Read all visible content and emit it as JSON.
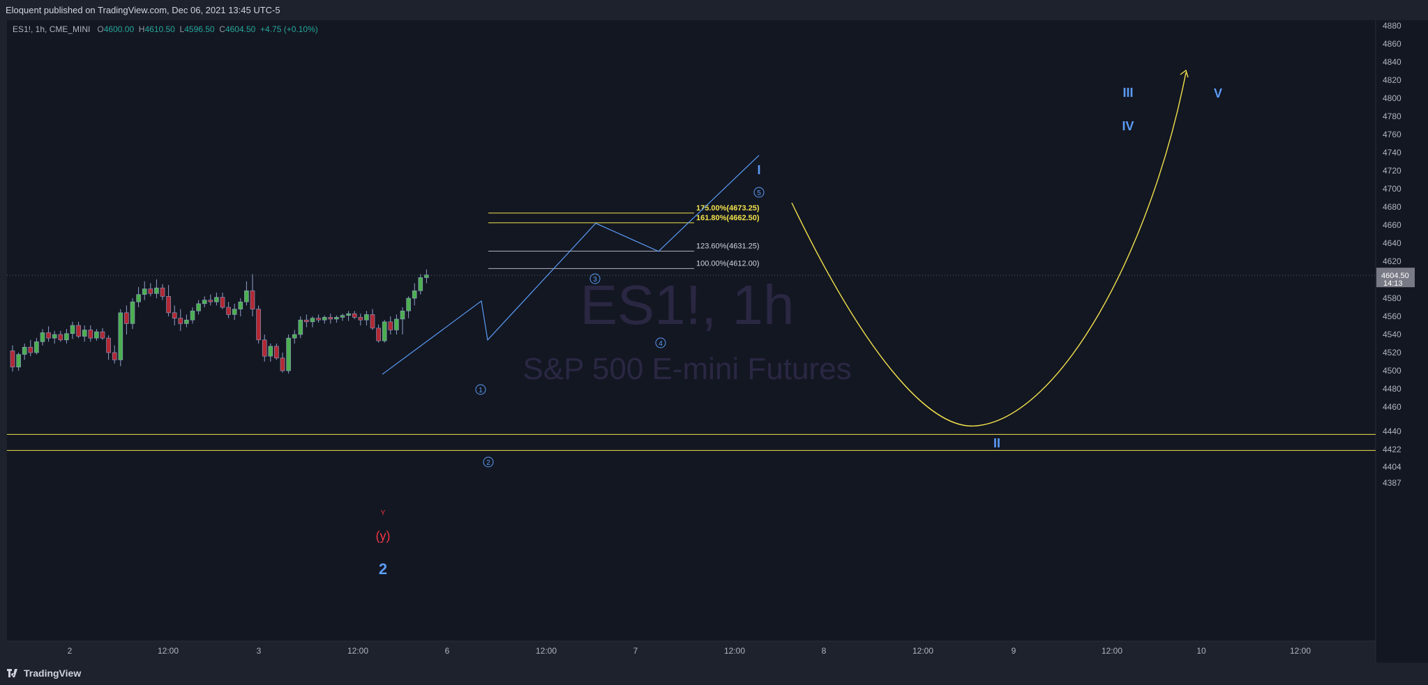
{
  "header": {
    "published": "Eloquent published on TradingView.com, Dec 06, 2021 13:45 UTC-5"
  },
  "legend": {
    "symbol": "ES1!, 1h, CME_MINI",
    "open_key": "O",
    "open": "4600.00",
    "high_key": "H",
    "high": "4610.50",
    "low_key": "L",
    "low": "4596.50",
    "close_key": "C",
    "close": "4604.50",
    "change": "+4.75 (+0.10%)"
  },
  "watermark": {
    "line1": "ES1!, 1h",
    "line2": "S&P 500 E-mini Futures"
  },
  "price_tag": {
    "price": "4604.50",
    "countdown": "14:13"
  },
  "footer": {
    "brand": "TradingView"
  },
  "colors": {
    "background": "#131722",
    "up": "#4caf50",
    "down": "#b22833",
    "wave_line": "#5b9cf6",
    "fib_yellow": "#f2e14c",
    "label_blue": "#5b9cf6",
    "label_red": "#f23645"
  },
  "chart_data": {
    "type": "candlestick",
    "title": "ES1!, 1h",
    "subtitle": "S&P 500 E-mini Futures",
    "y_ticks": [
      4880,
      4860,
      4840,
      4820,
      4800,
      4780,
      4760,
      4740,
      4720,
      4700,
      4680,
      4660,
      4640,
      4620,
      4600,
      4580,
      4560,
      4540,
      4520,
      4500,
      4480,
      4460,
      4440,
      4422,
      4404,
      4387
    ],
    "x_ticks": [
      "2",
      "12:00",
      "3",
      "12:00",
      "6",
      "12:00",
      "7",
      "12:00",
      "8",
      "12:00",
      "9",
      "12:00",
      "10",
      "12:00"
    ],
    "ylim": [
      4380,
      4890
    ],
    "candles": [
      {
        "o": 4522,
        "h": 4528,
        "l": 4499,
        "c": 4504
      },
      {
        "o": 4504,
        "h": 4520,
        "l": 4500,
        "c": 4518
      },
      {
        "o": 4518,
        "h": 4530,
        "l": 4512,
        "c": 4526
      },
      {
        "o": 4526,
        "h": 4534,
        "l": 4516,
        "c": 4520
      },
      {
        "o": 4520,
        "h": 4536,
        "l": 4518,
        "c": 4532
      },
      {
        "o": 4532,
        "h": 4546,
        "l": 4528,
        "c": 4542
      },
      {
        "o": 4542,
        "h": 4549,
        "l": 4532,
        "c": 4536
      },
      {
        "o": 4536,
        "h": 4544,
        "l": 4530,
        "c": 4540
      },
      {
        "o": 4540,
        "h": 4544,
        "l": 4532,
        "c": 4534
      },
      {
        "o": 4534,
        "h": 4546,
        "l": 4530,
        "c": 4541
      },
      {
        "o": 4541,
        "h": 4554,
        "l": 4535,
        "c": 4550
      },
      {
        "o": 4550,
        "h": 4554,
        "l": 4536,
        "c": 4538
      },
      {
        "o": 4538,
        "h": 4550,
        "l": 4532,
        "c": 4545
      },
      {
        "o": 4545,
        "h": 4550,
        "l": 4532,
        "c": 4536
      },
      {
        "o": 4536,
        "h": 4546,
        "l": 4533,
        "c": 4543
      },
      {
        "o": 4543,
        "h": 4547,
        "l": 4534,
        "c": 4536
      },
      {
        "o": 4536,
        "h": 4539,
        "l": 4512,
        "c": 4520
      },
      {
        "o": 4520,
        "h": 4528,
        "l": 4508,
        "c": 4512
      },
      {
        "o": 4512,
        "h": 4568,
        "l": 4505,
        "c": 4564
      },
      {
        "o": 4564,
        "h": 4572,
        "l": 4540,
        "c": 4552
      },
      {
        "o": 4552,
        "h": 4580,
        "l": 4546,
        "c": 4576
      },
      {
        "o": 4576,
        "h": 4592,
        "l": 4570,
        "c": 4584
      },
      {
        "o": 4584,
        "h": 4598,
        "l": 4578,
        "c": 4590
      },
      {
        "o": 4590,
        "h": 4596,
        "l": 4582,
        "c": 4585
      },
      {
        "o": 4585,
        "h": 4600,
        "l": 4580,
        "c": 4591
      },
      {
        "o": 4591,
        "h": 4595,
        "l": 4578,
        "c": 4582
      },
      {
        "o": 4582,
        "h": 4594,
        "l": 4560,
        "c": 4564
      },
      {
        "o": 4564,
        "h": 4572,
        "l": 4550,
        "c": 4558
      },
      {
        "o": 4558,
        "h": 4568,
        "l": 4544,
        "c": 4552
      },
      {
        "o": 4552,
        "h": 4562,
        "l": 4548,
        "c": 4556
      },
      {
        "o": 4556,
        "h": 4570,
        "l": 4552,
        "c": 4566
      },
      {
        "o": 4566,
        "h": 4578,
        "l": 4562,
        "c": 4574
      },
      {
        "o": 4574,
        "h": 4582,
        "l": 4570,
        "c": 4578
      },
      {
        "o": 4578,
        "h": 4584,
        "l": 4572,
        "c": 4576
      },
      {
        "o": 4576,
        "h": 4586,
        "l": 4572,
        "c": 4581
      },
      {
        "o": 4581,
        "h": 4586,
        "l": 4568,
        "c": 4570
      },
      {
        "o": 4570,
        "h": 4576,
        "l": 4558,
        "c": 4562
      },
      {
        "o": 4562,
        "h": 4574,
        "l": 4556,
        "c": 4568
      },
      {
        "o": 4568,
        "h": 4580,
        "l": 4560,
        "c": 4576
      },
      {
        "o": 4576,
        "h": 4598,
        "l": 4572,
        "c": 4588
      },
      {
        "o": 4588,
        "h": 4606,
        "l": 4560,
        "c": 4568
      },
      {
        "o": 4568,
        "h": 4572,
        "l": 4530,
        "c": 4534
      },
      {
        "o": 4534,
        "h": 4540,
        "l": 4510,
        "c": 4516
      },
      {
        "o": 4516,
        "h": 4530,
        "l": 4510,
        "c": 4527
      },
      {
        "o": 4527,
        "h": 4530,
        "l": 4512,
        "c": 4514
      },
      {
        "o": 4514,
        "h": 4520,
        "l": 4498,
        "c": 4500
      },
      {
        "o": 4500,
        "h": 4540,
        "l": 4497,
        "c": 4536
      },
      {
        "o": 4536,
        "h": 4545,
        "l": 4530,
        "c": 4540
      },
      {
        "o": 4540,
        "h": 4560,
        "l": 4536,
        "c": 4556
      },
      {
        "o": 4556,
        "h": 4562,
        "l": 4548,
        "c": 4554
      },
      {
        "o": 4554,
        "h": 4560,
        "l": 4548,
        "c": 4558
      },
      {
        "o": 4558,
        "h": 4562,
        "l": 4553,
        "c": 4556
      },
      {
        "o": 4556,
        "h": 4561,
        "l": 4552,
        "c": 4559
      },
      {
        "o": 4559,
        "h": 4563,
        "l": 4552,
        "c": 4557
      },
      {
        "o": 4557,
        "h": 4561,
        "l": 4553,
        "c": 4559
      },
      {
        "o": 4559,
        "h": 4563,
        "l": 4555,
        "c": 4561
      },
      {
        "o": 4561,
        "h": 4566,
        "l": 4555,
        "c": 4563
      },
      {
        "o": 4563,
        "h": 4566,
        "l": 4557,
        "c": 4559
      },
      {
        "o": 4559,
        "h": 4563,
        "l": 4550,
        "c": 4556
      },
      {
        "o": 4556,
        "h": 4566,
        "l": 4550,
        "c": 4562
      },
      {
        "o": 4562,
        "h": 4568,
        "l": 4545,
        "c": 4547
      },
      {
        "o": 4547,
        "h": 4551,
        "l": 4531,
        "c": 4533
      },
      {
        "o": 4533,
        "h": 4556,
        "l": 4531,
        "c": 4554
      },
      {
        "o": 4554,
        "h": 4560,
        "l": 4540,
        "c": 4545
      },
      {
        "o": 4545,
        "h": 4562,
        "l": 4540,
        "c": 4557
      },
      {
        "o": 4557,
        "h": 4570,
        "l": 4540,
        "c": 4566
      },
      {
        "o": 4566,
        "h": 4582,
        "l": 4558,
        "c": 4580
      },
      {
        "o": 4580,
        "h": 4596,
        "l": 4572,
        "c": 4588
      },
      {
        "o": 4588,
        "h": 4606,
        "l": 4584,
        "c": 4602
      },
      {
        "o": 4602,
        "h": 4611,
        "l": 4596,
        "c": 4605
      }
    ],
    "fibonacci_levels": [
      {
        "label": "175.00%(4673.25)",
        "price": 4673.25,
        "highlight": true
      },
      {
        "label": "161.80%(4662.50)",
        "price": 4662.5,
        "highlight": true
      },
      {
        "label": "123.60%(4631.25)",
        "price": 4631.25,
        "highlight": false
      },
      {
        "label": "100.00%(4612.00)",
        "price": 4612.0,
        "highlight": false
      }
    ],
    "support_lines": [
      4437,
      4421
    ],
    "wave_labels_small": [
      "1",
      "2",
      "3",
      "4",
      "5"
    ],
    "wave_labels": {
      "y_small": "Y",
      "y_paren": "(y)",
      "two": "2",
      "I": "I",
      "II": "II",
      "III": "III",
      "IV": "IV",
      "V": "V"
    }
  }
}
